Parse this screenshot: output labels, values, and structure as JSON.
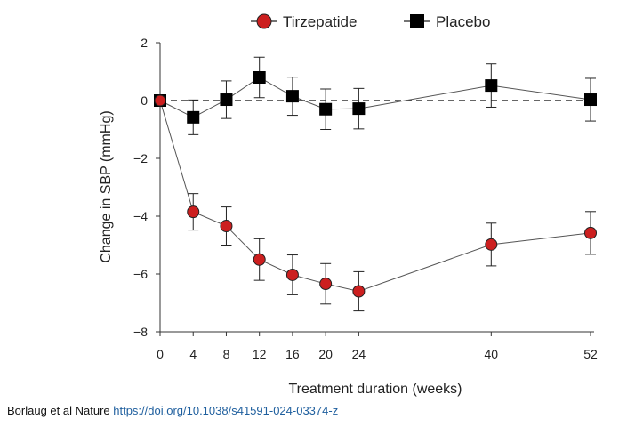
{
  "chart_data": {
    "type": "line",
    "title": "",
    "xlabel": "Treatment duration  (weeks)",
    "ylabel": "Change in SBP (mmHg)",
    "x": [
      0,
      4,
      8,
      12,
      16,
      20,
      24,
      40,
      52
    ],
    "x_ticks": [
      "0",
      "4",
      "8",
      "12",
      "16",
      "20",
      "24",
      "40",
      "52"
    ],
    "y_ticks": [
      "2",
      "0",
      "−2",
      "−4",
      "−6",
      "−8"
    ],
    "y_tick_values": [
      2,
      0,
      -2,
      -4,
      -6,
      -8
    ],
    "ylim": [
      -8,
      2
    ],
    "xlim": [
      0,
      52
    ],
    "reference_line": 0,
    "legend_position": "top",
    "series": [
      {
        "name": "Tirzepatide",
        "marker": "circle",
        "color": "#cc1f1f",
        "values": [
          0,
          -3.85,
          -4.34,
          -5.5,
          -6.03,
          -6.34,
          -6.6,
          -4.98,
          -4.58
        ],
        "error": [
          0,
          0.63,
          0.66,
          0.72,
          0.69,
          0.7,
          0.68,
          0.74,
          0.74
        ]
      },
      {
        "name": "Placebo",
        "marker": "square",
        "color": "#000000",
        "values": [
          0,
          -0.58,
          0.03,
          0.8,
          0.15,
          -0.3,
          -0.28,
          0.52,
          0.03
        ],
        "error": [
          0,
          0.6,
          0.65,
          0.7,
          0.66,
          0.7,
          0.7,
          0.75,
          0.74
        ]
      }
    ]
  },
  "caption": {
    "text": "Borlaug et al Nature ",
    "link": "https://doi.org/10.1038/s41591-024-03374-z"
  }
}
